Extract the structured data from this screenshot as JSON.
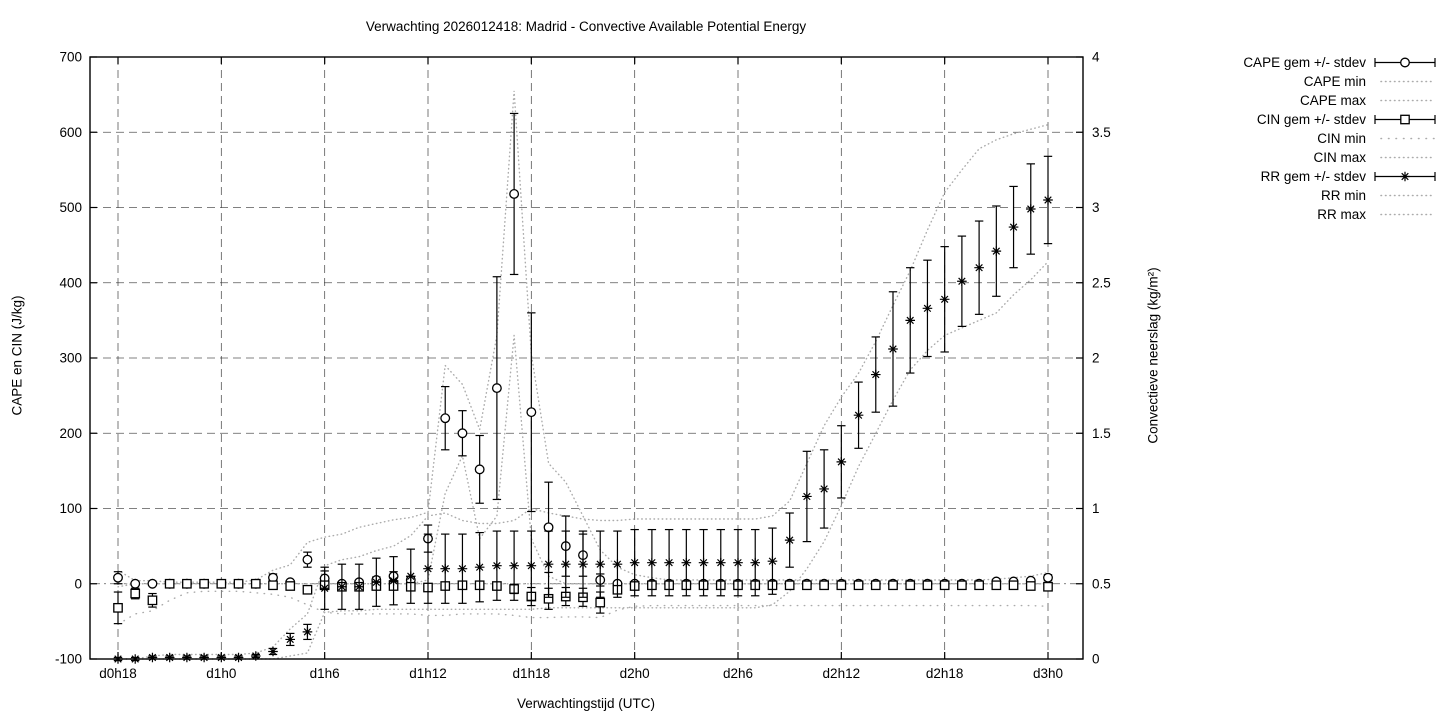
{
  "title": "Verwachting 2026012418: Madrid - Convective Available Potential Energy",
  "axes": {
    "x_label": "Verwachtingstijd (UTC)",
    "y_left_label": "CAPE en CIN (J/kg)",
    "y_right_label": "Convectieve neerslag (kg/m²)"
  },
  "legend": {
    "items": [
      {
        "label": "CAPE gem +/- stdev",
        "sample": "errorbar-circle"
      },
      {
        "label": "CAPE min",
        "sample": "dotted"
      },
      {
        "label": "CAPE max",
        "sample": "dotted"
      },
      {
        "label": "CIN gem +/- stdev",
        "sample": "errorbar-square"
      },
      {
        "label": "CIN min",
        "sample": "dotted-sparse"
      },
      {
        "label": "CIN max",
        "sample": "dotted"
      },
      {
        "label": "RR gem +/- stdev",
        "sample": "errorbar-star"
      },
      {
        "label": "RR min",
        "sample": "dotted"
      },
      {
        "label": "RR max",
        "sample": "dotted"
      }
    ]
  },
  "chart_data": {
    "type": "line",
    "subtype": "ensemble-errorbar-forecast",
    "grid": true,
    "legend_position": "outside-top-right",
    "colors": {
      "series": "#000000",
      "minmax_dotted": "#ababab",
      "grid": "#3a3a3a"
    },
    "x_axis": {
      "points": 55,
      "hours_step": 1,
      "tick_labels": [
        "d0h18",
        "d1h0",
        "d1h6",
        "d1h12",
        "d1h18",
        "d2h0",
        "d2h6",
        "d2h12",
        "d2h18",
        "d3h0"
      ],
      "tick_indices": [
        0,
        6,
        12,
        18,
        24,
        30,
        36,
        42,
        48,
        54
      ]
    },
    "y_left_axis": {
      "min": -100,
      "max": 700,
      "tick_values": [
        700,
        600,
        500,
        400,
        300,
        200,
        100,
        0,
        -100
      ],
      "tick_labels": [
        "700",
        "600",
        "500",
        "400",
        "300",
        "200",
        "100",
        "0",
        "-100"
      ]
    },
    "y_right_axis": {
      "min": 0,
      "max": 4,
      "tick_values": [
        4,
        3.5,
        3,
        2.5,
        2,
        1.5,
        1,
        0.5,
        0
      ],
      "tick_labels": [
        "4",
        "3.5",
        "3",
        "2.5",
        "2",
        "1.5",
        "1",
        "0.5",
        "0"
      ]
    },
    "series": [
      {
        "name": "CAPE gem +/- stdev",
        "axis": "left",
        "marker": "circle",
        "mean": [
          8,
          0,
          0,
          0,
          0,
          0,
          0,
          0,
          0,
          8,
          2,
          32,
          7,
          0,
          2,
          5,
          10,
          5,
          60,
          220,
          200,
          152,
          260,
          518,
          228,
          75,
          50,
          38,
          5,
          0,
          0,
          0,
          0,
          0,
          0,
          0,
          0,
          0,
          0,
          0,
          0,
          0,
          0,
          0,
          0,
          0,
          0,
          0,
          0,
          0,
          0,
          3,
          3,
          4,
          8
        ],
        "stdev": [
          8,
          2,
          2,
          0,
          0,
          0,
          0,
          0,
          0,
          5,
          2,
          10,
          10,
          2,
          3,
          4,
          6,
          4,
          18,
          42,
          30,
          45,
          148,
          107,
          132,
          60,
          40,
          28,
          8,
          2,
          0,
          0,
          0,
          0,
          0,
          0,
          0,
          0,
          0,
          0,
          0,
          0,
          0,
          0,
          0,
          0,
          0,
          0,
          0,
          0,
          0,
          2,
          2,
          3,
          4
        ]
      },
      {
        "name": "CAPE min",
        "axis": "left",
        "style": "dotted",
        "values": [
          0,
          0,
          0,
          0,
          0,
          0,
          0,
          0,
          0,
          0,
          0,
          0,
          0,
          0,
          0,
          0,
          0,
          0,
          5,
          120,
          170,
          60,
          90,
          330,
          60,
          10,
          0,
          0,
          0,
          0,
          0,
          0,
          0,
          0,
          0,
          0,
          0,
          0,
          0,
          0,
          0,
          0,
          0,
          0,
          0,
          0,
          0,
          0,
          0,
          0,
          0,
          0,
          0,
          0,
          0
        ]
      },
      {
        "name": "CAPE max",
        "axis": "left",
        "style": "dotted",
        "values": [
          18,
          4,
          4,
          2,
          2,
          2,
          2,
          2,
          5,
          18,
          25,
          55,
          62,
          66,
          75,
          80,
          85,
          88,
          95,
          290,
          265,
          205,
          330,
          655,
          305,
          160,
          135,
          90,
          45,
          22,
          12,
          8,
          5,
          5,
          5,
          5,
          5,
          5,
          5,
          5,
          5,
          5,
          5,
          5,
          5,
          5,
          5,
          5,
          5,
          5,
          5,
          6,
          8,
          10,
          15
        ]
      },
      {
        "name": "CIN gem +/- stdev",
        "axis": "left",
        "marker": "square",
        "mean": [
          -32,
          -13,
          -22,
          0,
          0,
          0,
          0,
          0,
          0,
          -2,
          -3,
          -8,
          -2,
          -4,
          -4,
          -3,
          -3,
          -4,
          -5,
          -3,
          -2,
          -2,
          -3,
          -7,
          -17,
          -20,
          -17,
          -18,
          -25,
          -8,
          -3,
          -2,
          -2,
          -2,
          -2,
          -2,
          -2,
          -2,
          -2,
          -2,
          -2,
          -2,
          -2,
          -2,
          -2,
          -2,
          -2,
          -2,
          -2,
          -2,
          -2,
          -2,
          -2,
          -3,
          -4
        ],
        "stdev": [
          21,
          7,
          9,
          0,
          0,
          0,
          0,
          0,
          0,
          1,
          2,
          4,
          2,
          2,
          2,
          2,
          2,
          2,
          4,
          2,
          2,
          2,
          3,
          6,
          12,
          14,
          12,
          12,
          14,
          5,
          2,
          2,
          2,
          2,
          2,
          2,
          2,
          2,
          2,
          2,
          2,
          2,
          2,
          2,
          2,
          2,
          2,
          2,
          2,
          2,
          2,
          2,
          2,
          2,
          3
        ]
      },
      {
        "name": "CIN min",
        "axis": "left",
        "style": "dotted-sparse",
        "values": [
          -54,
          -40,
          -36,
          -22,
          -12,
          -10,
          -10,
          -10,
          -12,
          -14,
          -18,
          -28,
          -38,
          -40,
          -40,
          -40,
          -40,
          -40,
          -42,
          -42,
          -40,
          -40,
          -40,
          -42,
          -45,
          -45,
          -44,
          -44,
          -45,
          -35,
          -30,
          -29,
          -29,
          -29,
          -29,
          -29,
          -29,
          -29,
          -29,
          -29,
          -29,
          -29,
          -29,
          -29,
          -29,
          -29,
          -29,
          -29,
          -29,
          -29,
          -29,
          -29,
          -29,
          -29,
          -30
        ]
      },
      {
        "name": "CIN max",
        "axis": "left",
        "style": "dotted",
        "values": [
          -4,
          0,
          0,
          0,
          0,
          0,
          0,
          0,
          0,
          0,
          0,
          0,
          0,
          0,
          0,
          0,
          0,
          0,
          0,
          0,
          0,
          0,
          0,
          0,
          0,
          0,
          0,
          0,
          0,
          0,
          0,
          0,
          0,
          0,
          0,
          0,
          0,
          0,
          0,
          0,
          0,
          0,
          0,
          0,
          0,
          0,
          0,
          0,
          0,
          0,
          0,
          0,
          0,
          0,
          0
        ]
      },
      {
        "name": "RR gem +/- stdev",
        "axis": "right",
        "marker": "star",
        "mean": [
          0,
          0,
          0.01,
          0.01,
          0.01,
          0.01,
          0.01,
          0.01,
          0.02,
          0.05,
          0.13,
          0.18,
          0.47,
          0.48,
          0.48,
          0.51,
          0.52,
          0.55,
          0.6,
          0.6,
          0.6,
          0.61,
          0.62,
          0.62,
          0.62,
          0.63,
          0.63,
          0.63,
          0.63,
          0.63,
          0.64,
          0.64,
          0.64,
          0.64,
          0.64,
          0.64,
          0.64,
          0.64,
          0.65,
          0.79,
          1.08,
          1.13,
          1.31,
          1.62,
          1.89,
          2.06,
          2.25,
          2.33,
          2.39,
          2.51,
          2.6,
          2.71,
          2.87,
          2.99,
          3.05
        ],
        "stdev": [
          0.01,
          0.01,
          0.01,
          0.01,
          0.01,
          0.01,
          0.01,
          0.01,
          0.01,
          0.02,
          0.04,
          0.05,
          0.14,
          0.15,
          0.15,
          0.16,
          0.16,
          0.18,
          0.23,
          0.23,
          0.23,
          0.23,
          0.23,
          0.23,
          0.23,
          0.22,
          0.22,
          0.22,
          0.22,
          0.22,
          0.22,
          0.22,
          0.22,
          0.22,
          0.22,
          0.22,
          0.22,
          0.22,
          0.22,
          0.18,
          0.3,
          0.26,
          0.24,
          0.22,
          0.25,
          0.38,
          0.35,
          0.32,
          0.35,
          0.3,
          0.31,
          0.3,
          0.27,
          0.3,
          0.29
        ]
      },
      {
        "name": "RR min",
        "axis": "right",
        "style": "dotted",
        "values": [
          0,
          0,
          0,
          0,
          0,
          0,
          0,
          0,
          0,
          0,
          0.02,
          0.04,
          0.31,
          0.32,
          0.32,
          0.33,
          0.33,
          0.33,
          0.33,
          0.33,
          0.33,
          0.33,
          0.33,
          0.33,
          0.33,
          0.34,
          0.34,
          0.34,
          0.34,
          0.34,
          0.34,
          0.34,
          0.34,
          0.34,
          0.34,
          0.34,
          0.34,
          0.34,
          0.36,
          0.45,
          0.6,
          0.78,
          1.02,
          1.28,
          1.5,
          1.72,
          1.92,
          2.05,
          2.15,
          2.2,
          2.25,
          2.3,
          2.42,
          2.52,
          2.64
        ]
      },
      {
        "name": "RR max",
        "axis": "right",
        "style": "dotted",
        "values": [
          0,
          0,
          0.02,
          0.03,
          0.03,
          0.03,
          0.03,
          0.03,
          0.04,
          0.08,
          0.2,
          0.3,
          0.62,
          0.66,
          0.68,
          0.72,
          0.75,
          0.82,
          0.95,
          0.97,
          0.92,
          0.9,
          0.9,
          0.92,
          1.0,
          0.97,
          0.95,
          0.93,
          0.92,
          0.92,
          0.93,
          0.93,
          0.93,
          0.93,
          0.93,
          0.93,
          0.93,
          0.93,
          0.95,
          1.05,
          1.3,
          1.55,
          1.74,
          1.9,
          2.11,
          2.35,
          2.58,
          2.85,
          3.1,
          3.25,
          3.39,
          3.45,
          3.49,
          3.52,
          3.55
        ]
      }
    ]
  }
}
